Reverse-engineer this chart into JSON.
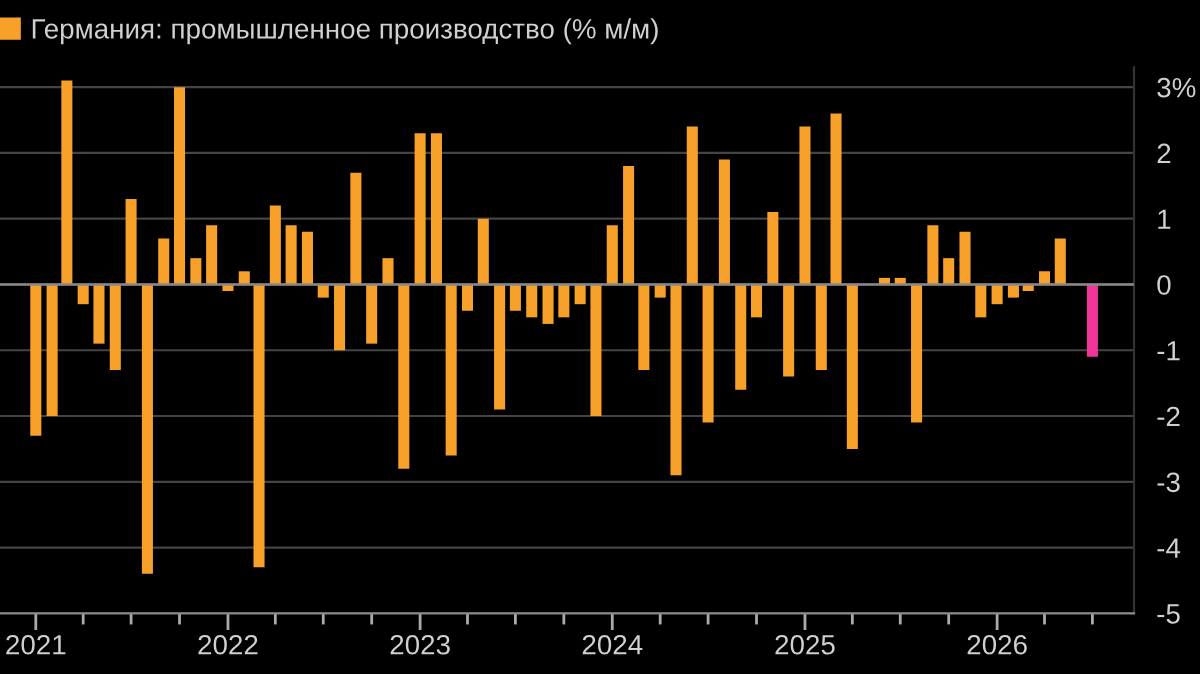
{
  "chart_data": {
    "type": "bar",
    "x": [
      "2021-01",
      "2021-02",
      "2021-03",
      "2021-04",
      "2021-05",
      "2021-06",
      "2021-07",
      "2021-08",
      "2021-09",
      "2021-10",
      "2021-11",
      "2021-12",
      "2022-01",
      "2022-02",
      "2022-03",
      "2022-04",
      "2022-05",
      "2022-06",
      "2022-07",
      "2022-08",
      "2022-09",
      "2022-10",
      "2022-11",
      "2022-12",
      "2023-01",
      "2023-02",
      "2023-03",
      "2023-04",
      "2023-05",
      "2023-06",
      "2023-07",
      "2023-08",
      "2023-09",
      "2023-10",
      "2023-11",
      "2023-12",
      "2024-01",
      "2024-02",
      "2024-03",
      "2024-04",
      "2024-05",
      "2024-06",
      "2024-07",
      "2024-08",
      "2024-09",
      "2024-10",
      "2024-11",
      "2024-12",
      "2025-01",
      "2025-02",
      "2025-03",
      "2025-04",
      "2025-05",
      "2025-06",
      "2025-07",
      "2025-08",
      "2025-09",
      "2025-10",
      "2025-11",
      "2025-12",
      "2026-01",
      "2026-02",
      "2026-03",
      "2026-04",
      "2026-05",
      "2026-06",
      "2026-07"
    ],
    "series": [
      {
        "name": "Германия: промышленное производство (% м/м)",
        "color": "#f7a12b",
        "values": [
          -2.3,
          -2.0,
          3.1,
          -0.3,
          -0.9,
          -1.3,
          1.3,
          -4.4,
          0.7,
          3.0,
          0.4,
          0.9,
          -0.1,
          0.2,
          -4.3,
          1.2,
          0.9,
          0.8,
          -0.2,
          -1.0,
          1.7,
          -0.9,
          0.4,
          -2.8,
          2.3,
          2.3,
          -2.6,
          -0.4,
          1.0,
          -1.9,
          -0.4,
          -0.5,
          -0.6,
          -0.5,
          -0.3,
          -2.0,
          0.9,
          1.8,
          -1.3,
          -0.2,
          -2.9,
          2.4,
          -2.1,
          1.9,
          -1.6,
          -0.5,
          1.1,
          -1.4,
          2.4,
          -1.3,
          2.6,
          -2.5,
          null,
          0.1,
          0.1,
          -2.1,
          0.9,
          0.4,
          0.8,
          -0.5,
          -0.3,
          -0.2,
          -0.1,
          0.2,
          0.7,
          null,
          -1.1
        ],
        "colors": [
          "#f7a12b",
          "#f7a12b",
          "#f7a12b",
          "#f7a12b",
          "#f7a12b",
          "#f7a12b",
          "#f7a12b",
          "#f7a12b",
          "#f7a12b",
          "#f7a12b",
          "#f7a12b",
          "#f7a12b",
          "#f7a12b",
          "#f7a12b",
          "#f7a12b",
          "#f7a12b",
          "#f7a12b",
          "#f7a12b",
          "#f7a12b",
          "#f7a12b",
          "#f7a12b",
          "#f7a12b",
          "#f7a12b",
          "#f7a12b",
          "#f7a12b",
          "#f7a12b",
          "#f7a12b",
          "#f7a12b",
          "#f7a12b",
          "#f7a12b",
          "#f7a12b",
          "#f7a12b",
          "#f7a12b",
          "#f7a12b",
          "#f7a12b",
          "#f7a12b",
          "#f7a12b",
          "#f7a12b",
          "#f7a12b",
          "#f7a12b",
          "#f7a12b",
          "#f7a12b",
          "#f7a12b",
          "#f7a12b",
          "#f7a12b",
          "#f7a12b",
          "#f7a12b",
          "#f7a12b",
          "#f7a12b",
          "#f7a12b",
          "#f7a12b",
          "#f7a12b",
          "#f7a12b",
          "#f7a12b",
          "#f7a12b",
          "#f7a12b",
          "#f7a12b",
          "#f7a12b",
          "#f7a12b",
          "#f7a12b",
          "#f7a12b",
          "#f7a12b",
          "#f7a12b",
          "#f7a12b",
          "#f7a12b",
          "#f7a12b",
          "#f0359a"
        ]
      }
    ],
    "xlim": [
      "2020-10-25",
      "2026-09-18"
    ],
    "xticks": [
      {
        "value": "2021-01",
        "label": "2021"
      },
      {
        "value": "2021-04",
        "label": null
      },
      {
        "value": "2021-07",
        "label": null
      },
      {
        "value": "2021-10",
        "label": null
      },
      {
        "value": "2022-01",
        "label": "2022"
      },
      {
        "value": "2022-04",
        "label": null
      },
      {
        "value": "2022-07",
        "label": null
      },
      {
        "value": "2022-10",
        "label": null
      },
      {
        "value": "2023-01",
        "label": "2023"
      },
      {
        "value": "2023-04",
        "label": null
      },
      {
        "value": "2023-07",
        "label": null
      },
      {
        "value": "2023-10",
        "label": null
      },
      {
        "value": "2024-01",
        "label": "2024"
      },
      {
        "value": "2024-04",
        "label": null
      },
      {
        "value": "2024-07",
        "label": null
      },
      {
        "value": "2024-10",
        "label": null
      },
      {
        "value": "2025-01",
        "label": "2025"
      },
      {
        "value": "2025-04",
        "label": null
      },
      {
        "value": "2025-07",
        "label": null
      },
      {
        "value": "2025-10",
        "label": null
      },
      {
        "value": "2026-01",
        "label": "2026"
      },
      {
        "value": "2026-04",
        "label": null
      },
      {
        "value": "2026-07",
        "label": null
      }
    ],
    "ylim": [
      -5,
      3.3
    ],
    "yticks": [
      {
        "value": 3,
        "label": "3%"
      },
      2,
      1,
      0,
      -1,
      -2,
      -3,
      -4,
      -5
    ],
    "grid": "y",
    "legend": "top left"
  }
}
